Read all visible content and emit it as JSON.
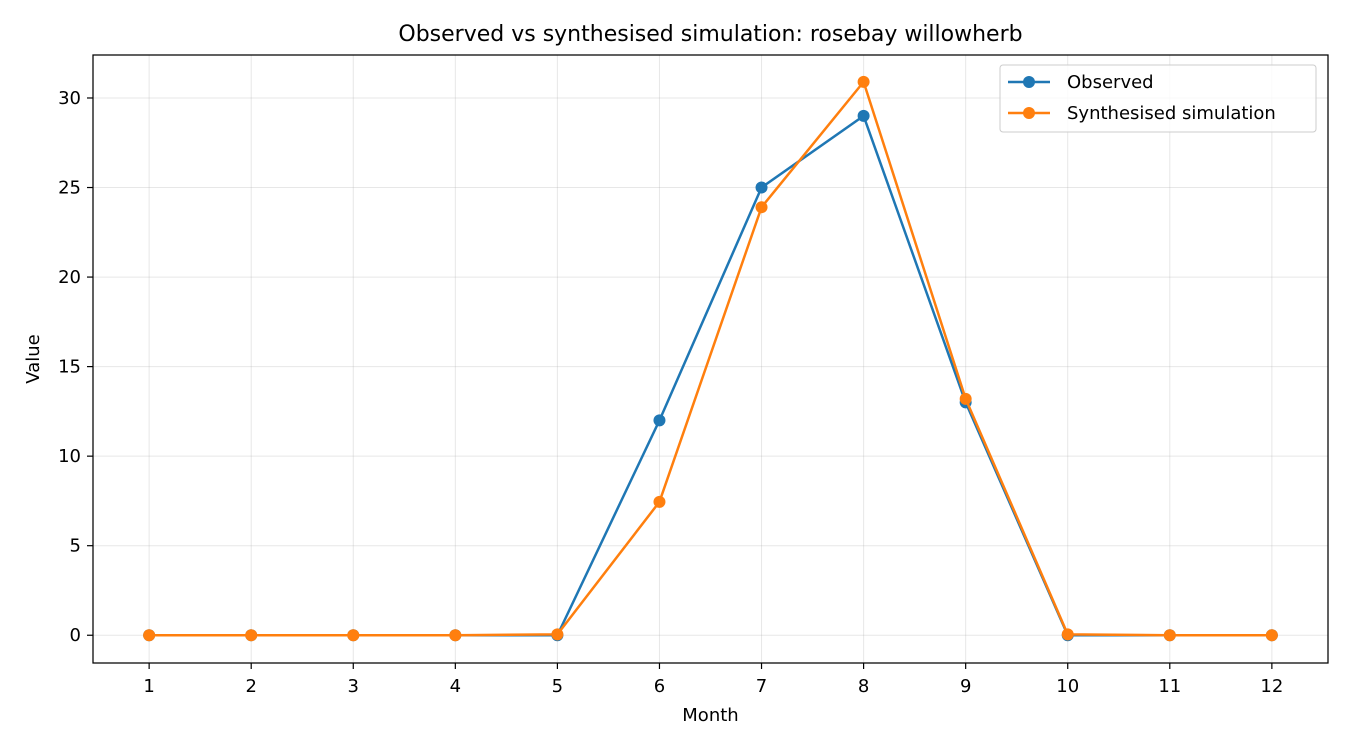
{
  "chart_data": {
    "type": "line",
    "title": "Observed vs synthesised simulation: rosebay willowherb",
    "xlabel": "Month",
    "ylabel": "Value",
    "x": [
      1,
      2,
      3,
      4,
      5,
      6,
      7,
      8,
      9,
      10,
      11,
      12
    ],
    "xticks": [
      "1",
      "2",
      "3",
      "4",
      "5",
      "6",
      "7",
      "8",
      "9",
      "10",
      "11",
      "12"
    ],
    "yticks": [
      "0",
      "5",
      "10",
      "15",
      "20",
      "25",
      "30"
    ],
    "xlim": [
      0.45,
      12.55
    ],
    "ylim": [
      -1.55,
      32.4
    ],
    "grid": true,
    "legend_position": "top-right",
    "series": [
      {
        "name": "Observed",
        "color": "#1f77b4",
        "marker": "circle",
        "values": [
          0,
          0,
          0,
          0,
          0,
          12,
          25,
          29,
          13,
          0,
          0,
          0
        ]
      },
      {
        "name": "Synthesised simulation",
        "color": "#ff7f0e",
        "marker": "circle",
        "values": [
          0,
          0,
          0,
          0,
          0.05,
          7.45,
          23.9,
          30.9,
          13.2,
          0.05,
          0,
          0
        ]
      }
    ]
  }
}
